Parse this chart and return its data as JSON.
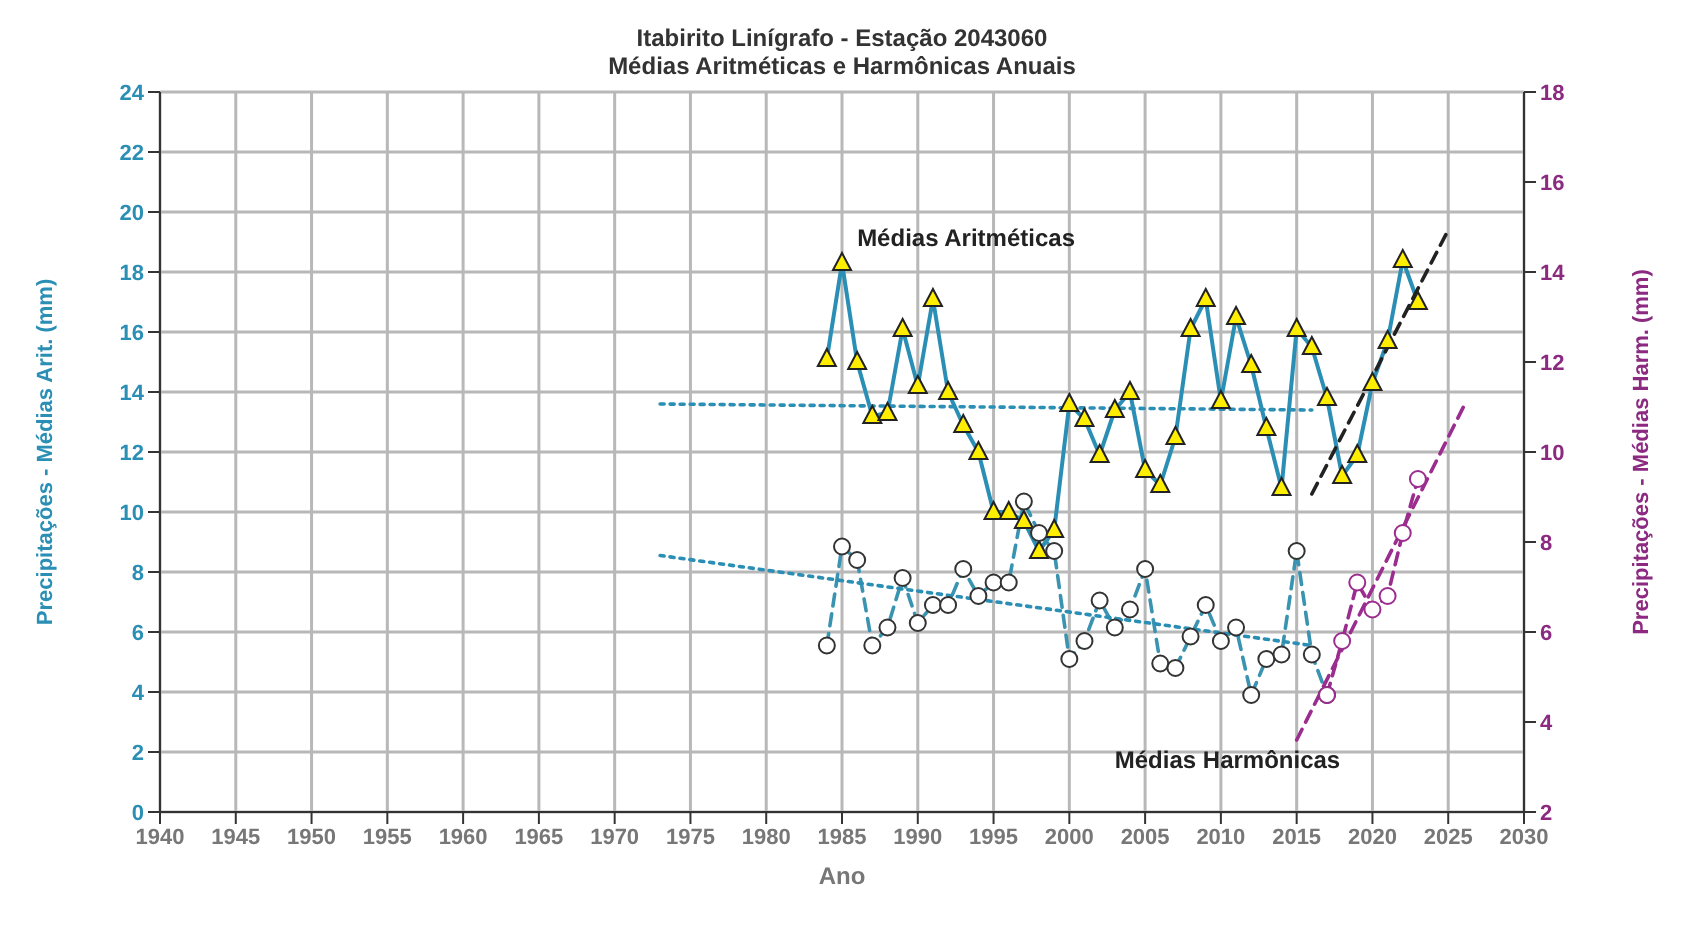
{
  "chart_data": {
    "type": "line",
    "title": "Itabirito Linígrafo -  Estação 2043060",
    "subtitle": "Médias Aritméticas e Harmônicas Anuais",
    "xlabel": "Ano",
    "ylabel": "Precipitações - Médias Arit. (mm)",
    "y2label": "Precipitações - Médias Harm. (mm)",
    "xlim": [
      1940,
      2030
    ],
    "xticks": [
      1940,
      1945,
      1950,
      1955,
      1960,
      1965,
      1970,
      1975,
      1980,
      1985,
      1990,
      1995,
      2000,
      2005,
      2010,
      2015,
      2020,
      2025,
      2030
    ],
    "ylim": [
      0,
      24
    ],
    "yticks": [
      0,
      2,
      4,
      6,
      8,
      10,
      12,
      14,
      16,
      18,
      20,
      22,
      24
    ],
    "y2lim": [
      2,
      18
    ],
    "y2ticks": [
      2,
      4,
      6,
      8,
      10,
      12,
      14,
      16,
      18
    ],
    "grid": true,
    "series": [
      {
        "name": "Médias Aritméticas",
        "color": "#2b8fb5",
        "marker": "triangle",
        "line_style": "solid",
        "x": [
          1984,
          1985,
          1986,
          1987,
          1988,
          1989,
          1990,
          1991,
          1992,
          1993,
          1994,
          1995,
          1996,
          1997,
          1998,
          1999,
          2000,
          2001,
          2002,
          2003,
          2004,
          2005,
          2006,
          2007,
          2008,
          2009,
          2010,
          2011,
          2012,
          2013,
          2014,
          2015,
          2016,
          2017,
          2018,
          2019,
          2020,
          2021,
          2022,
          2023
        ],
        "values": [
          15.1,
          18.3,
          15.0,
          13.2,
          13.3,
          16.1,
          14.2,
          17.1,
          14.0,
          12.9,
          12.0,
          10.0,
          10.0,
          9.7,
          8.7,
          9.4,
          13.6,
          13.1,
          11.9,
          13.4,
          14.0,
          11.4,
          10.9,
          12.5,
          16.1,
          17.1,
          13.7,
          16.5,
          14.9,
          12.8,
          10.8,
          16.1,
          15.5,
          13.8,
          11.2,
          11.9,
          14.3,
          15.7,
          18.4,
          17.0
        ]
      },
      {
        "name": "Médias Harmônicas",
        "color": "#3a93b0",
        "marker": "circle",
        "line_style": "dashed",
        "axis": "y2",
        "x": [
          1984,
          1985,
          1986,
          1987,
          1988,
          1989,
          1990,
          1991,
          1992,
          1993,
          1994,
          1995,
          1996,
          1997,
          1998,
          1999,
          2000,
          2001,
          2002,
          2003,
          2004,
          2005,
          2006,
          2007,
          2008,
          2009,
          2010,
          2011,
          2012,
          2013,
          2014,
          2015,
          2016,
          2017
        ],
        "values": [
          5.7,
          7.9,
          7.6,
          5.7,
          6.1,
          7.2,
          6.2,
          6.6,
          6.6,
          7.4,
          6.8,
          7.1,
          7.1,
          8.9,
          8.2,
          7.8,
          5.4,
          5.8,
          6.7,
          6.1,
          6.5,
          7.4,
          5.3,
          5.2,
          5.9,
          6.6,
          5.8,
          6.1,
          4.6,
          5.4,
          5.5,
          7.8,
          5.5,
          4.6
        ]
      },
      {
        "color": "#9b2d8f",
        "marker": "circle",
        "line_style": "dashed",
        "axis": "y2",
        "x": [
          2017,
          2018,
          2019,
          2020,
          2021,
          2022,
          2023
        ],
        "values": [
          4.6,
          5.8,
          7.1,
          6.5,
          6.8,
          8.2,
          9.4
        ]
      },
      {
        "type": "line",
        "color": "#2b8fb5",
        "marker": "none",
        "line_style": "dotted",
        "x": [
          1973,
          2016
        ],
        "values": [
          13.6,
          13.4
        ]
      },
      {
        "type": "line",
        "color": "#2b8fb5",
        "marker": "none",
        "line_style": "dotted",
        "axis": "y2",
        "x": [
          1973,
          2016
        ],
        "values": [
          7.7,
          5.7
        ]
      },
      {
        "type": "line",
        "color": "#222222",
        "marker": "none",
        "line_style": "dashed",
        "x": [
          2016,
          2025
        ],
        "values": [
          10.6,
          19.4
        ]
      },
      {
        "type": "line",
        "color": "#9b2d8f",
        "marker": "none",
        "line_style": "dashed",
        "axis": "y2",
        "x": [
          2015,
          2026
        ],
        "values": [
          3.6,
          11.0
        ]
      }
    ]
  }
}
